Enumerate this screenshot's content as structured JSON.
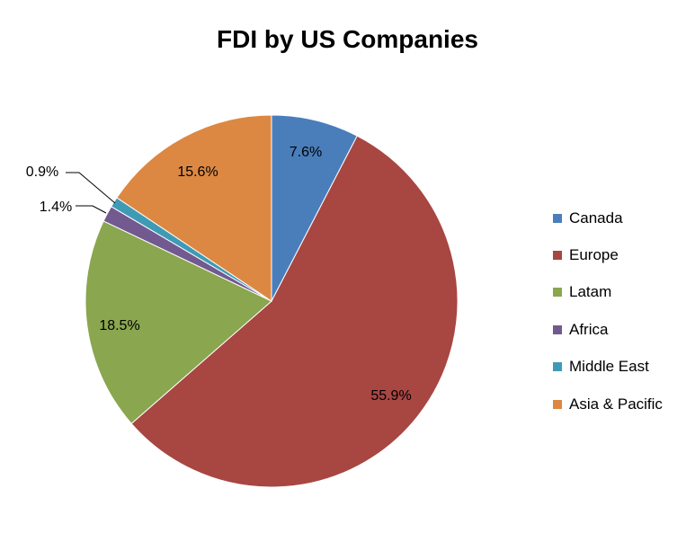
{
  "chart_data": {
    "type": "pie",
    "title": "FDI by US Companies",
    "legend_position": "right",
    "slices": [
      {
        "name": "Canada",
        "value": 7.6,
        "label": "7.6%",
        "color": "#4a7ebb"
      },
      {
        "name": "Europe",
        "value": 55.9,
        "label": "55.9%",
        "color": "#a84642"
      },
      {
        "name": "Latam",
        "value": 18.5,
        "label": "18.5%",
        "color": "#8aa64f"
      },
      {
        "name": "Africa",
        "value": 1.4,
        "label": "1.4%",
        "color": "#725990"
      },
      {
        "name": "Middle East",
        "value": 0.9,
        "label": "0.9%",
        "color": "#3f9bb5"
      },
      {
        "name": "Asia & Pacific",
        "value": 15.6,
        "label": "15.6%",
        "color": "#dc8842"
      }
    ]
  }
}
